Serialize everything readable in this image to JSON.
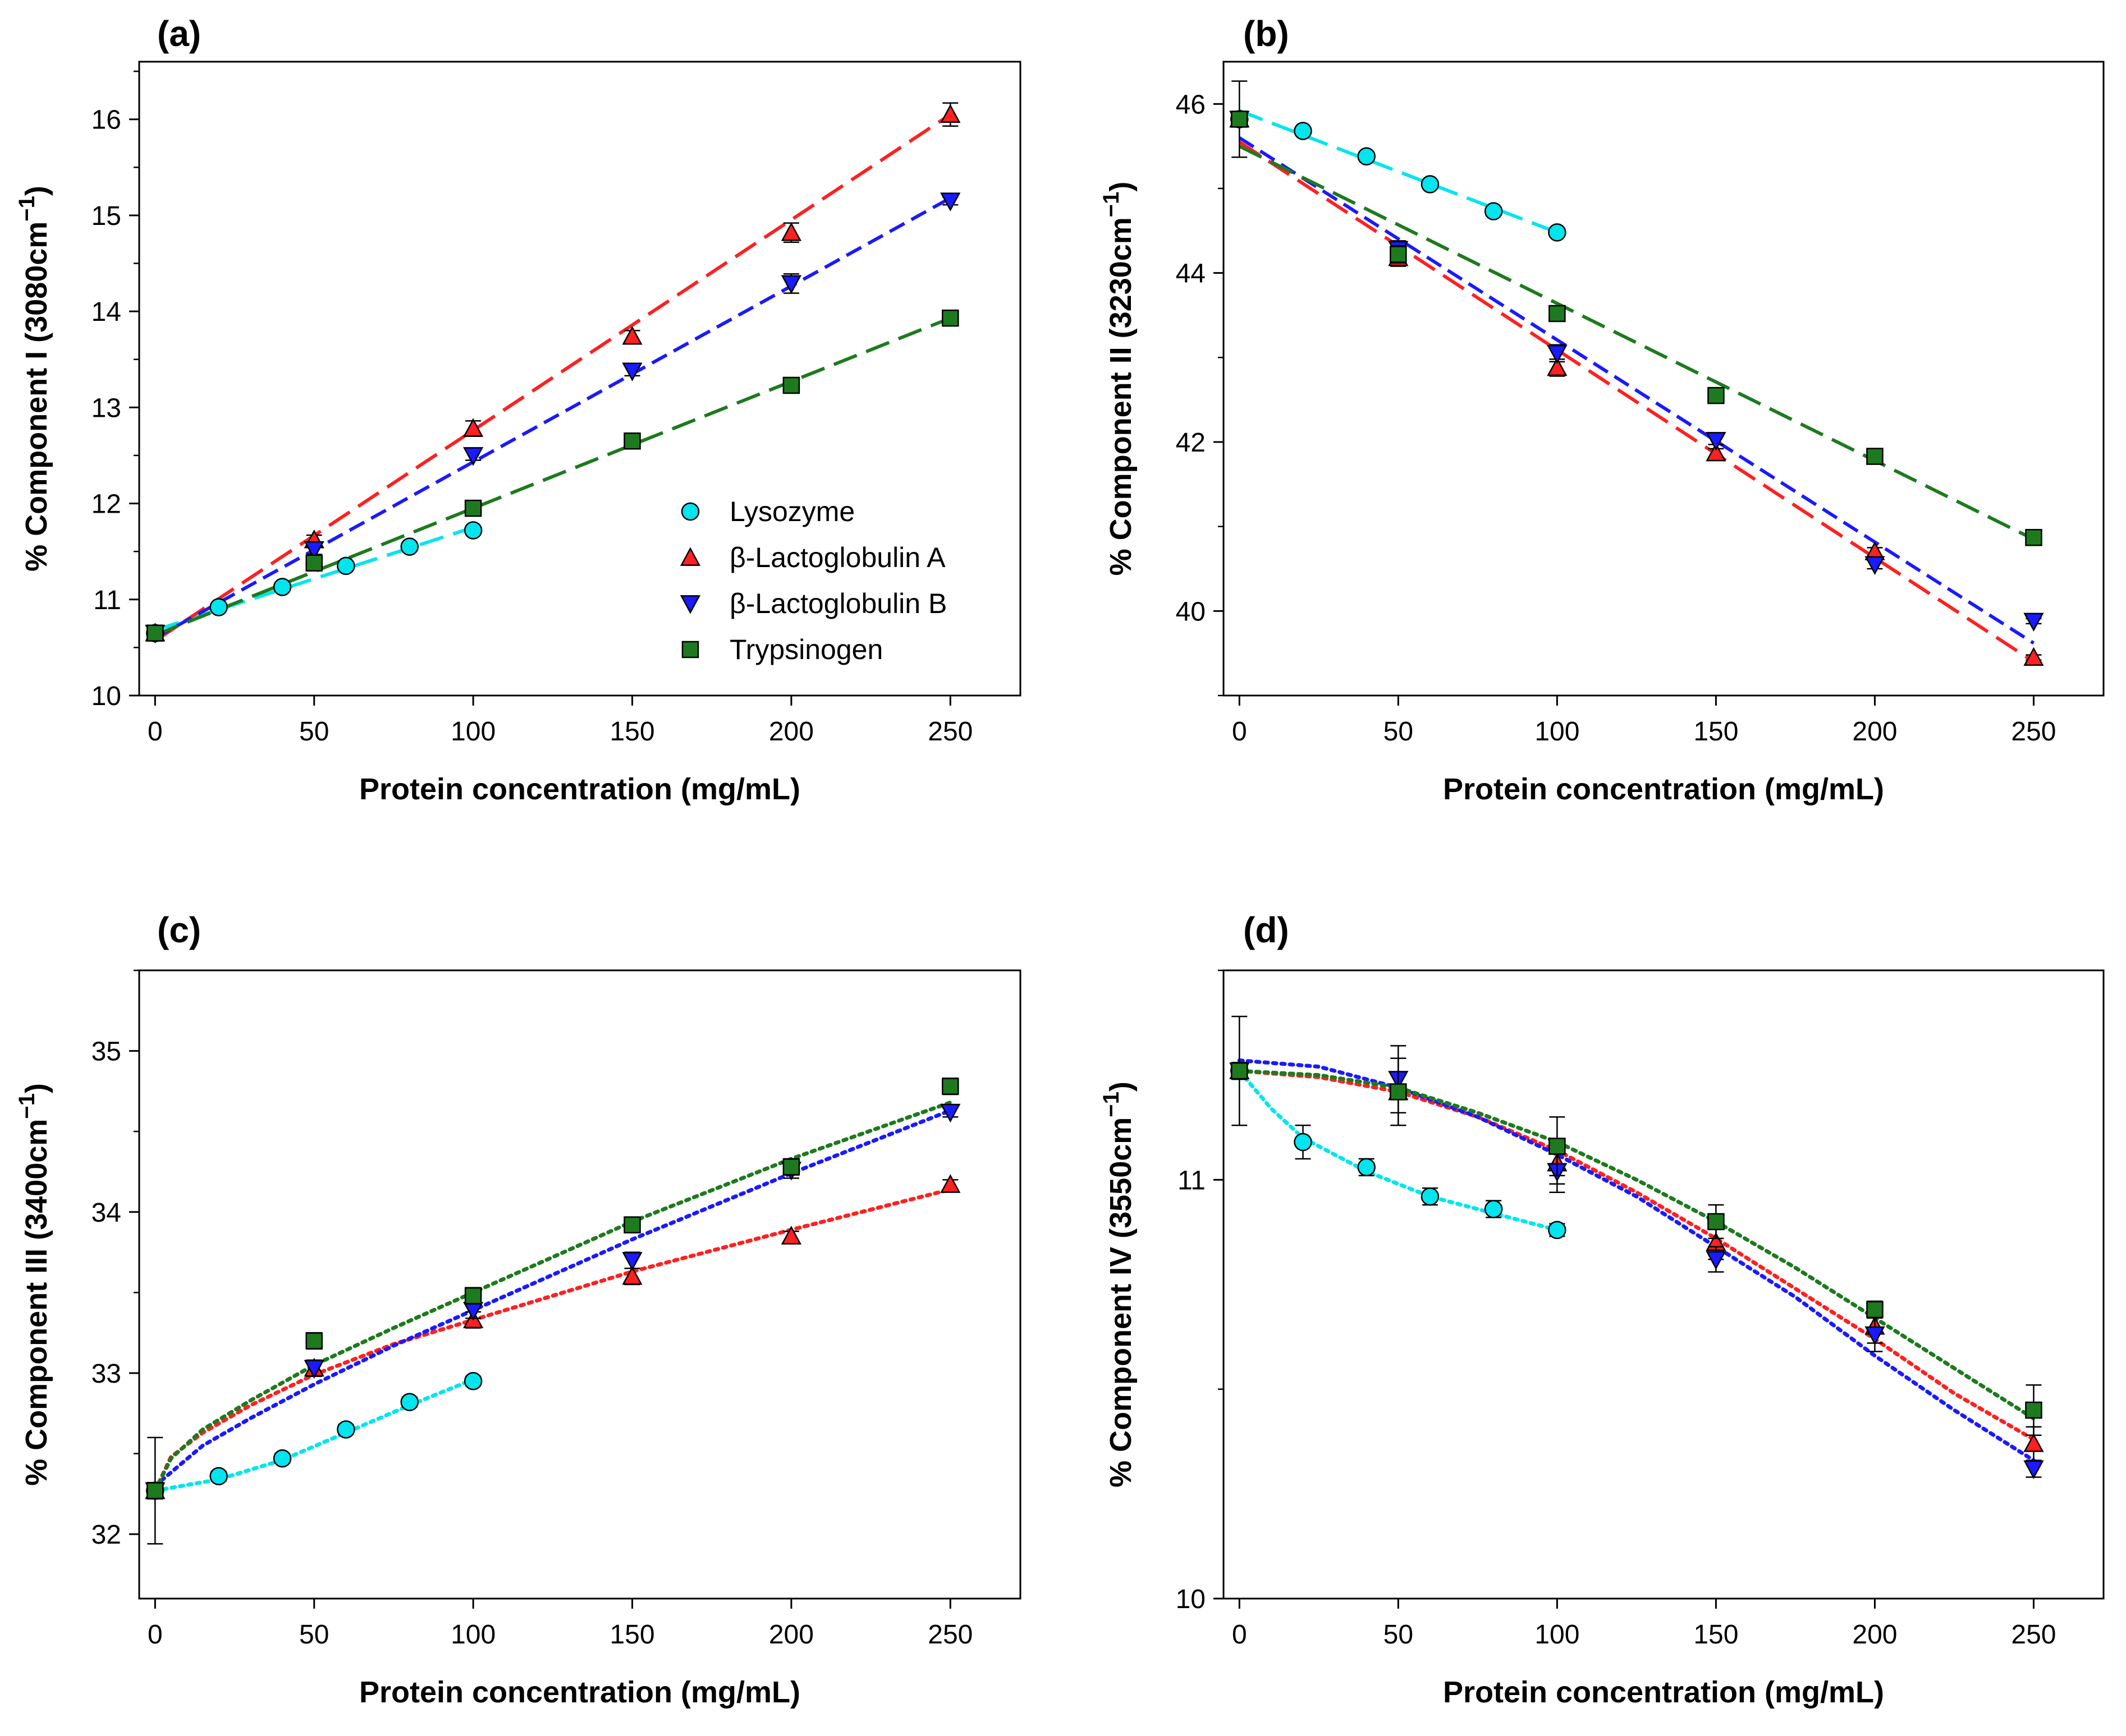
{
  "colors": {
    "Lysozyme": "#00e5ee",
    "bLgA": "#ff2020",
    "bLgB": "#1a1aff",
    "Trypsinogen": "#1e7a1e"
  },
  "legend": {
    "entries": [
      "Lysozyme",
      "β-Lactoglobulin A",
      "β-Lactoglobulin B",
      "Trypsinogen"
    ]
  },
  "chart_data": [
    {
      "id": "a",
      "type": "scatter",
      "panel_label": "(a)",
      "xlabel": "Protein concentration (mg/mL)",
      "ylabel": "% Component I (3080cm",
      "ylabel_sup": "−1",
      "ylabel_close": ")",
      "xlim": [
        -5,
        272
      ],
      "ylim": [
        10,
        16.6
      ],
      "xticks": [
        "0",
        "50",
        "100",
        "150",
        "200",
        "250"
      ],
      "yticks": [
        "10",
        "11",
        "12",
        "13",
        "14",
        "15",
        "16"
      ],
      "fit_style": "dashed",
      "series": [
        {
          "name": "Lysozyme",
          "marker": "circle",
          "color_key": "Lysozyme",
          "x": [
            0,
            20,
            40,
            60,
            80,
            100
          ],
          "y": [
            10.65,
            10.92,
            11.13,
            11.35,
            11.55,
            11.72
          ],
          "err": [
            0.03,
            0.03,
            0.03,
            0.03,
            0.03,
            0.03
          ],
          "fit": [
            [
              0,
              10.68
            ],
            [
              100,
              11.75
            ]
          ]
        },
        {
          "name": "β-Lactoglobulin A",
          "marker": "triangle-up",
          "color_key": "bLgA",
          "x": [
            0,
            50,
            100,
            150,
            200,
            250
          ],
          "y": [
            10.65,
            11.62,
            12.78,
            13.74,
            14.82,
            16.05
          ],
          "err": [
            0.03,
            0.05,
            0.08,
            0.06,
            0.1,
            0.12
          ],
          "fit": [
            [
              0,
              10.57
            ],
            [
              250,
              16.05
            ]
          ]
        },
        {
          "name": "β-Lactoglobulin B",
          "marker": "triangle-down",
          "color_key": "bLgB",
          "x": [
            0,
            50,
            100,
            150,
            200,
            250
          ],
          "y": [
            10.65,
            11.52,
            12.5,
            13.38,
            14.29,
            15.15
          ],
          "err": [
            0.03,
            0.05,
            0.05,
            0.05,
            0.1,
            0.04
          ],
          "fit": [
            [
              0,
              10.6
            ],
            [
              250,
              15.18
            ]
          ]
        },
        {
          "name": "Trypsinogen",
          "marker": "square",
          "color_key": "Trypsinogen",
          "x": [
            0,
            50,
            100,
            150,
            200,
            250
          ],
          "y": [
            10.65,
            11.38,
            11.95,
            12.65,
            13.23,
            13.93
          ],
          "err": [
            0.03,
            0.06,
            0.04,
            0.03,
            0.03,
            0.03
          ],
          "fit": [
            [
              0,
              10.63
            ],
            [
              250,
              13.93
            ]
          ]
        }
      ]
    },
    {
      "id": "b",
      "type": "scatter",
      "panel_label": "(b)",
      "xlabel": "Protein concentration (mg/mL)",
      "ylabel": "% Component II (3230cm",
      "ylabel_sup": "−1",
      "ylabel_close": ")",
      "xlim": [
        -5,
        272
      ],
      "ylim": [
        39.0,
        46.5
      ],
      "xticks": [
        "0",
        "50",
        "100",
        "150",
        "200",
        "250"
      ],
      "yticks": [
        "40",
        "42",
        "44",
        "46"
      ],
      "fit_style": "dashed",
      "series": [
        {
          "name": "Lysozyme",
          "marker": "circle",
          "color_key": "Lysozyme",
          "x": [
            0,
            20,
            40,
            60,
            80,
            100
          ],
          "y": [
            45.82,
            45.68,
            45.38,
            45.05,
            44.73,
            44.48
          ],
          "err": [
            0.45,
            0.04,
            0.04,
            0.04,
            0.04,
            0.04
          ],
          "fit": [
            [
              0,
              45.92
            ],
            [
              100,
              44.48
            ]
          ]
        },
        {
          "name": "β-Lactoglobulin A",
          "marker": "triangle-up",
          "color_key": "bLgA",
          "x": [
            0,
            50,
            100,
            150,
            200,
            250
          ],
          "y": [
            45.82,
            44.18,
            42.88,
            41.87,
            40.7,
            39.45
          ],
          "err": [
            0.05,
            0.1,
            0.1,
            0.05,
            0.05,
            0.03
          ],
          "fit": [
            [
              0,
              45.55
            ],
            [
              250,
              39.4
            ]
          ]
        },
        {
          "name": "β-Lactoglobulin B",
          "marker": "triangle-down",
          "color_key": "bLgB",
          "x": [
            0,
            50,
            100,
            150,
            200,
            250
          ],
          "y": [
            45.82,
            44.28,
            43.05,
            42.02,
            40.55,
            39.88
          ],
          "err": [
            0.05,
            0.1,
            0.1,
            0.05,
            0.05,
            0.03
          ],
          "fit": [
            [
              0,
              45.6
            ],
            [
              250,
              39.62
            ]
          ]
        },
        {
          "name": "Trypsinogen",
          "marker": "square",
          "color_key": "Trypsinogen",
          "x": [
            0,
            50,
            100,
            150,
            200,
            250
          ],
          "y": [
            45.82,
            44.22,
            43.52,
            42.55,
            41.83,
            40.87
          ],
          "err": [
            0.05,
            0.1,
            0.05,
            0.05,
            0.05,
            0.05
          ],
          "fit": [
            [
              0,
              45.5
            ],
            [
              250,
              40.85
            ]
          ]
        }
      ]
    },
    {
      "id": "c",
      "type": "scatter",
      "panel_label": "(c)",
      "xlabel": "Protein concentration (mg/mL)",
      "ylabel": "% Component III (3400cm",
      "ylabel_sup": "−1",
      "ylabel_close": ")",
      "xlim": [
        -5,
        272
      ],
      "ylim": [
        31.6,
        35.5
      ],
      "xticks": [
        "0",
        "50",
        "100",
        "150",
        "200",
        "250"
      ],
      "yticks": [
        "32",
        "33",
        "34",
        "35"
      ],
      "fit_style": "dotted",
      "series": [
        {
          "name": "Lysozyme",
          "marker": "circle",
          "color_key": "Lysozyme",
          "x": [
            0,
            20,
            40,
            60,
            80,
            100
          ],
          "y": [
            32.27,
            32.36,
            32.47,
            32.65,
            32.82,
            32.95
          ],
          "err": [
            0.33,
            0.03,
            0.03,
            0.03,
            0.03,
            0.03
          ],
          "fit": [
            [
              0,
              32.27
            ],
            [
              20,
              32.34
            ],
            [
              40,
              32.46
            ],
            [
              60,
              32.63
            ],
            [
              80,
              32.8
            ],
            [
              100,
              32.96
            ]
          ]
        },
        {
          "name": "β-Lactoglobulin A",
          "marker": "triangle-up",
          "color_key": "bLgA",
          "x": [
            0,
            50,
            100,
            150,
            200,
            250
          ],
          "y": [
            32.27,
            33.03,
            33.33,
            33.6,
            33.85,
            34.17
          ],
          "err": [
            0.05,
            0.05,
            0.05,
            0.05,
            0.03,
            0.03
          ],
          "fit": [
            [
              0,
              32.27
            ],
            [
              5,
              32.48
            ],
            [
              15,
              32.63
            ],
            [
              30,
              32.8
            ],
            [
              50,
              32.99
            ],
            [
              75,
              33.18
            ],
            [
              100,
              33.33
            ],
            [
              150,
              33.63
            ],
            [
              200,
              33.89
            ],
            [
              250,
              34.14
            ]
          ]
        },
        {
          "name": "β-Lactoglobulin B",
          "marker": "triangle-down",
          "color_key": "bLgB",
          "x": [
            0,
            50,
            100,
            150,
            200,
            250
          ],
          "y": [
            32.27,
            33.03,
            33.39,
            33.7,
            34.26,
            34.62
          ],
          "err": [
            0.05,
            0.05,
            0.05,
            0.05,
            0.05,
            0.03
          ],
          "fit": [
            [
              0,
              32.3
            ],
            [
              15,
              32.55
            ],
            [
              30,
              32.72
            ],
            [
              50,
              32.93
            ],
            [
              75,
              33.17
            ],
            [
              100,
              33.39
            ],
            [
              150,
              33.83
            ],
            [
              200,
              34.24
            ],
            [
              250,
              34.63
            ]
          ]
        },
        {
          "name": "Trypsinogen",
          "marker": "square",
          "color_key": "Trypsinogen",
          "x": [
            0,
            50,
            100,
            150,
            200,
            250
          ],
          "y": [
            32.27,
            33.2,
            33.48,
            33.92,
            34.28,
            34.78
          ],
          "err": [
            0.05,
            0.05,
            0.05,
            0.03,
            0.05,
            0.05
          ],
          "fit": [
            [
              0,
              32.27
            ],
            [
              5,
              32.47
            ],
            [
              15,
              32.65
            ],
            [
              30,
              32.83
            ],
            [
              50,
              33.05
            ],
            [
              75,
              33.28
            ],
            [
              100,
              33.5
            ],
            [
              150,
              33.94
            ],
            [
              200,
              34.33
            ],
            [
              250,
              34.68
            ]
          ]
        }
      ]
    },
    {
      "id": "d",
      "type": "scatter",
      "panel_label": "(d)",
      "xlabel": "Protein concentration (mg/mL)",
      "ylabel": "% Component IV (3550cm",
      "ylabel_sup": "−1",
      "ylabel_close": ")",
      "xlim": [
        -5,
        272
      ],
      "ylim": [
        10.0,
        11.5
      ],
      "xticks": [
        "0",
        "50",
        "100",
        "150",
        "200",
        "250"
      ],
      "yticks": [
        "10",
        "11"
      ],
      "fit_style": "dotted",
      "series": [
        {
          "name": "Lysozyme",
          "marker": "circle",
          "color_key": "Lysozyme",
          "x": [
            0,
            20,
            40,
            60,
            80,
            100
          ],
          "y": [
            11.26,
            11.09,
            11.03,
            10.96,
            10.93,
            10.88
          ],
          "err": [
            0.13,
            0.04,
            0.02,
            0.02,
            0.02,
            0.015
          ],
          "fit": [
            [
              0,
              11.26
            ],
            [
              10,
              11.17
            ],
            [
              20,
              11.1
            ],
            [
              40,
              11.02
            ],
            [
              60,
              10.96
            ],
            [
              80,
              10.92
            ],
            [
              100,
              10.88
            ]
          ]
        },
        {
          "name": "β-Lactoglobulin A",
          "marker": "triangle-up",
          "color_key": "bLgA",
          "x": [
            0,
            50,
            100,
            150,
            200,
            250
          ],
          "y": [
            11.26,
            11.21,
            11.04,
            10.85,
            10.65,
            10.37
          ],
          "err": [
            0.02,
            0.08,
            0.05,
            0.04,
            0.04,
            0.04
          ],
          "fit": [
            [
              0,
              11.26
            ],
            [
              25,
              11.245
            ],
            [
              50,
              11.21
            ],
            [
              75,
              11.15
            ],
            [
              100,
              11.07
            ],
            [
              125,
              10.97
            ],
            [
              150,
              10.86
            ],
            [
              175,
              10.74
            ],
            [
              200,
              10.62
            ],
            [
              225,
              10.49
            ],
            [
              250,
              10.38
            ]
          ]
        },
        {
          "name": "β-Lactoglobulin B",
          "marker": "triangle-down",
          "color_key": "bLgB",
          "x": [
            0,
            50,
            100,
            150,
            200,
            250
          ],
          "y": [
            11.26,
            11.24,
            11.02,
            10.81,
            10.63,
            10.31
          ],
          "err": [
            0.02,
            0.08,
            0.05,
            0.03,
            0.04,
            0.02
          ],
          "fit": [
            [
              0,
              11.285
            ],
            [
              25,
              11.27
            ],
            [
              50,
              11.22
            ],
            [
              75,
              11.15
            ],
            [
              100,
              11.06
            ],
            [
              125,
              10.96
            ],
            [
              150,
              10.84
            ],
            [
              175,
              10.72
            ],
            [
              200,
              10.58
            ],
            [
              225,
              10.45
            ],
            [
              250,
              10.33
            ]
          ]
        },
        {
          "name": "Trypsinogen",
          "marker": "square",
          "color_key": "Trypsinogen",
          "x": [
            0,
            50,
            100,
            150,
            200,
            250
          ],
          "y": [
            11.26,
            11.21,
            11.08,
            10.9,
            10.69,
            10.45
          ],
          "err": [
            0.02,
            0.08,
            0.07,
            0.04,
            0.02,
            0.06
          ],
          "fit": [
            [
              0,
              11.26
            ],
            [
              25,
              11.25
            ],
            [
              50,
              11.22
            ],
            [
              75,
              11.16
            ],
            [
              100,
              11.09
            ],
            [
              125,
              11.0
            ],
            [
              150,
              10.9
            ],
            [
              175,
              10.79
            ],
            [
              200,
              10.67
            ],
            [
              225,
              10.55
            ],
            [
              250,
              10.43
            ]
          ]
        }
      ]
    }
  ]
}
